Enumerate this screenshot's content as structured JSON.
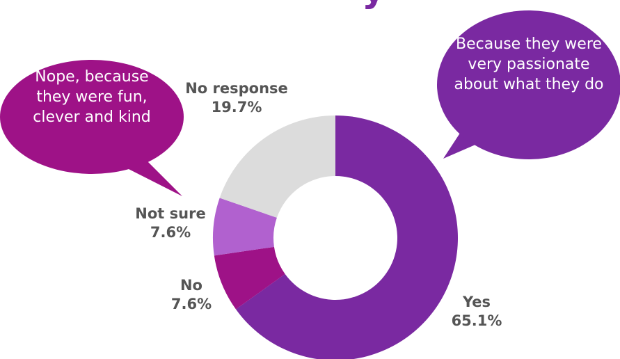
{
  "chart_data": {
    "type": "pie",
    "categories": [
      "Yes",
      "No",
      "Not sure",
      "No response"
    ],
    "values": [
      65.1,
      7.6,
      7.6,
      19.7
    ],
    "value_labels": [
      "65.1%",
      "7.6%",
      "7.6%",
      "19.7%"
    ],
    "colors": [
      "#7a29a1",
      "#9e1287",
      "#b161cf",
      "#dcdcdc"
    ],
    "donut": true
  },
  "bubbles": {
    "left": {
      "text": "Nope, because they were fun, clever and kind",
      "color": "#9e1287"
    },
    "right": {
      "text": "Because they were very passionate about what they do",
      "color": "#7a29a1"
    }
  },
  "title_fragment": {
    "text": "y",
    "color": "#7a29a1"
  }
}
